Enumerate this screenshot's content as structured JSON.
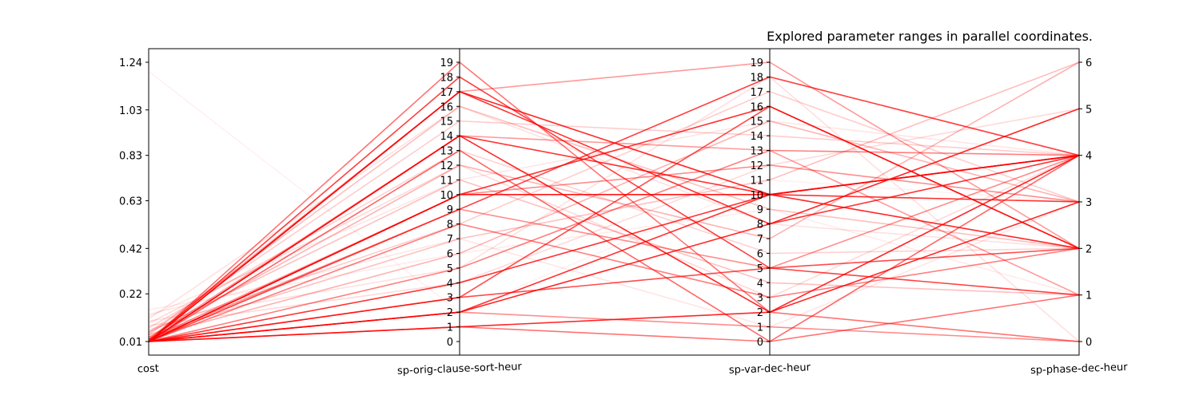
{
  "chart_data": {
    "type": "parallel_coordinates",
    "title": "Explored parameter ranges in parallel coordinates.",
    "line_color": "#ff0000",
    "axes": [
      {
        "name": "cost",
        "range": [
          0.01,
          1.24
        ],
        "ticks": [
          {
            "value": 0.01,
            "label": "0.01"
          },
          {
            "value": 0.22,
            "label": "0.22"
          },
          {
            "value": 0.42,
            "label": "0.42"
          },
          {
            "value": 0.63,
            "label": "0.63"
          },
          {
            "value": 0.83,
            "label": "0.83"
          },
          {
            "value": 1.03,
            "label": "1.03"
          },
          {
            "value": 1.24,
            "label": "1.24"
          }
        ]
      },
      {
        "name": "sp-orig-clause-sort-heur",
        "range": [
          0,
          19
        ],
        "ticks": [
          {
            "value": 0,
            "label": "0"
          },
          {
            "value": 1,
            "label": "1"
          },
          {
            "value": 2,
            "label": "2"
          },
          {
            "value": 3,
            "label": "3"
          },
          {
            "value": 4,
            "label": "4"
          },
          {
            "value": 5,
            "label": "5"
          },
          {
            "value": 6,
            "label": "6"
          },
          {
            "value": 7,
            "label": "7"
          },
          {
            "value": 8,
            "label": "8"
          },
          {
            "value": 9,
            "label": "9"
          },
          {
            "value": 10,
            "label": "10"
          },
          {
            "value": 11,
            "label": "11"
          },
          {
            "value": 12,
            "label": "12"
          },
          {
            "value": 13,
            "label": "13"
          },
          {
            "value": 14,
            "label": "14"
          },
          {
            "value": 15,
            "label": "15"
          },
          {
            "value": 16,
            "label": "16"
          },
          {
            "value": 17,
            "label": "17"
          },
          {
            "value": 18,
            "label": "18"
          },
          {
            "value": 19,
            "label": "19"
          }
        ]
      },
      {
        "name": "sp-var-dec-heur",
        "range": [
          0,
          19
        ],
        "ticks": [
          {
            "value": 0,
            "label": "0"
          },
          {
            "value": 1,
            "label": "1"
          },
          {
            "value": 2,
            "label": "2"
          },
          {
            "value": 3,
            "label": "3"
          },
          {
            "value": 4,
            "label": "4"
          },
          {
            "value": 5,
            "label": "5"
          },
          {
            "value": 6,
            "label": "6"
          },
          {
            "value": 7,
            "label": "7"
          },
          {
            "value": 8,
            "label": "8"
          },
          {
            "value": 9,
            "label": "9"
          },
          {
            "value": 10,
            "label": "10"
          },
          {
            "value": 11,
            "label": "11"
          },
          {
            "value": 12,
            "label": "12"
          },
          {
            "value": 13,
            "label": "13"
          },
          {
            "value": 14,
            "label": "14"
          },
          {
            "value": 15,
            "label": "15"
          },
          {
            "value": 16,
            "label": "16"
          },
          {
            "value": 17,
            "label": "17"
          },
          {
            "value": 18,
            "label": "18"
          },
          {
            "value": 19,
            "label": "19"
          }
        ]
      },
      {
        "name": "sp-phase-dec-heur",
        "range": [
          0,
          6
        ],
        "ticks": [
          {
            "value": 0,
            "label": "0"
          },
          {
            "value": 1,
            "label": "1"
          },
          {
            "value": 2,
            "label": "2"
          },
          {
            "value": 3,
            "label": "3"
          },
          {
            "value": 4,
            "label": "4"
          },
          {
            "value": 5,
            "label": "5"
          },
          {
            "value": 6,
            "label": "6"
          }
        ]
      }
    ],
    "lines": [
      {
        "values": [
          0.01,
          17,
          10,
          2
        ],
        "opacity": 0.85
      },
      {
        "values": [
          0.01,
          17,
          8,
          4
        ],
        "opacity": 0.8
      },
      {
        "values": [
          0.01,
          14,
          2,
          4
        ],
        "opacity": 0.85
      },
      {
        "values": [
          0.01,
          14,
          10,
          3
        ],
        "opacity": 0.8
      },
      {
        "values": [
          0.01,
          10,
          10,
          4
        ],
        "opacity": 0.9
      },
      {
        "values": [
          0.01,
          10,
          16,
          2
        ],
        "opacity": 0.8
      },
      {
        "values": [
          0.01,
          9,
          18,
          4
        ],
        "opacity": 0.75
      },
      {
        "values": [
          0.01,
          2,
          8,
          5
        ],
        "opacity": 0.85
      },
      {
        "values": [
          0.01,
          2,
          10,
          4
        ],
        "opacity": 0.8
      },
      {
        "values": [
          0.01,
          1,
          2,
          3
        ],
        "opacity": 0.85
      },
      {
        "values": [
          0.01,
          4,
          10,
          4
        ],
        "opacity": 0.8
      },
      {
        "values": [
          0.01,
          3,
          5,
          2
        ],
        "opacity": 0.7
      },
      {
        "values": [
          0.01,
          18,
          5,
          1
        ],
        "opacity": 0.75
      },
      {
        "values": [
          0.01,
          13,
          0,
          4
        ],
        "opacity": 0.6
      },
      {
        "values": [
          0.01,
          19,
          2,
          0
        ],
        "opacity": 0.55
      },
      {
        "values": [
          0.01,
          3,
          16,
          2
        ],
        "opacity": 0.7
      },
      {
        "values": [
          0.01,
          1,
          0,
          1
        ],
        "opacity": 0.55
      },
      {
        "values": [
          0.01,
          5,
          13,
          4
        ],
        "opacity": 0.5
      },
      {
        "values": [
          0.01,
          8,
          3,
          2
        ],
        "opacity": 0.5
      },
      {
        "values": [
          0.01,
          2,
          1,
          0
        ],
        "opacity": 0.45
      },
      {
        "values": [
          0.02,
          10,
          12,
          3
        ],
        "opacity": 0.45
      },
      {
        "values": [
          0.02,
          9,
          5,
          4
        ],
        "opacity": 0.45
      },
      {
        "values": [
          0.02,
          14,
          13,
          1
        ],
        "opacity": 0.4
      },
      {
        "values": [
          0.02,
          17,
          19,
          2
        ],
        "opacity": 0.4
      },
      {
        "values": [
          0.03,
          12,
          7,
          6
        ],
        "opacity": 0.3
      },
      {
        "values": [
          0.03,
          6,
          15,
          3
        ],
        "opacity": 0.3
      },
      {
        "values": [
          0.04,
          16,
          9,
          2
        ],
        "opacity": 0.25
      },
      {
        "values": [
          0.04,
          7,
          11,
          6
        ],
        "opacity": 0.25
      },
      {
        "values": [
          0.05,
          11,
          4,
          1
        ],
        "opacity": 0.25
      },
      {
        "values": [
          0.05,
          15,
          14,
          4
        ],
        "opacity": 0.2
      },
      {
        "values": [
          0.06,
          8,
          17,
          3
        ],
        "opacity": 0.2
      },
      {
        "values": [
          0.07,
          13,
          6,
          2
        ],
        "opacity": 0.18
      },
      {
        "values": [
          0.08,
          4,
          12,
          5
        ],
        "opacity": 0.15
      },
      {
        "values": [
          0.09,
          12,
          3,
          4
        ],
        "opacity": 0.15
      },
      {
        "values": [
          0.1,
          5,
          18,
          0
        ],
        "opacity": 0.12
      },
      {
        "values": [
          0.11,
          16,
          8,
          2
        ],
        "opacity": 0.12
      },
      {
        "values": [
          0.12,
          11,
          15,
          4
        ],
        "opacity": 0.1
      },
      {
        "values": [
          0.13,
          7,
          1,
          3
        ],
        "opacity": 0.1
      },
      {
        "values": [
          0.15,
          6,
          9,
          1
        ],
        "opacity": 0.08
      },
      {
        "values": [
          1.2,
          2,
          11,
          3
        ],
        "opacity": 0.06
      }
    ]
  }
}
